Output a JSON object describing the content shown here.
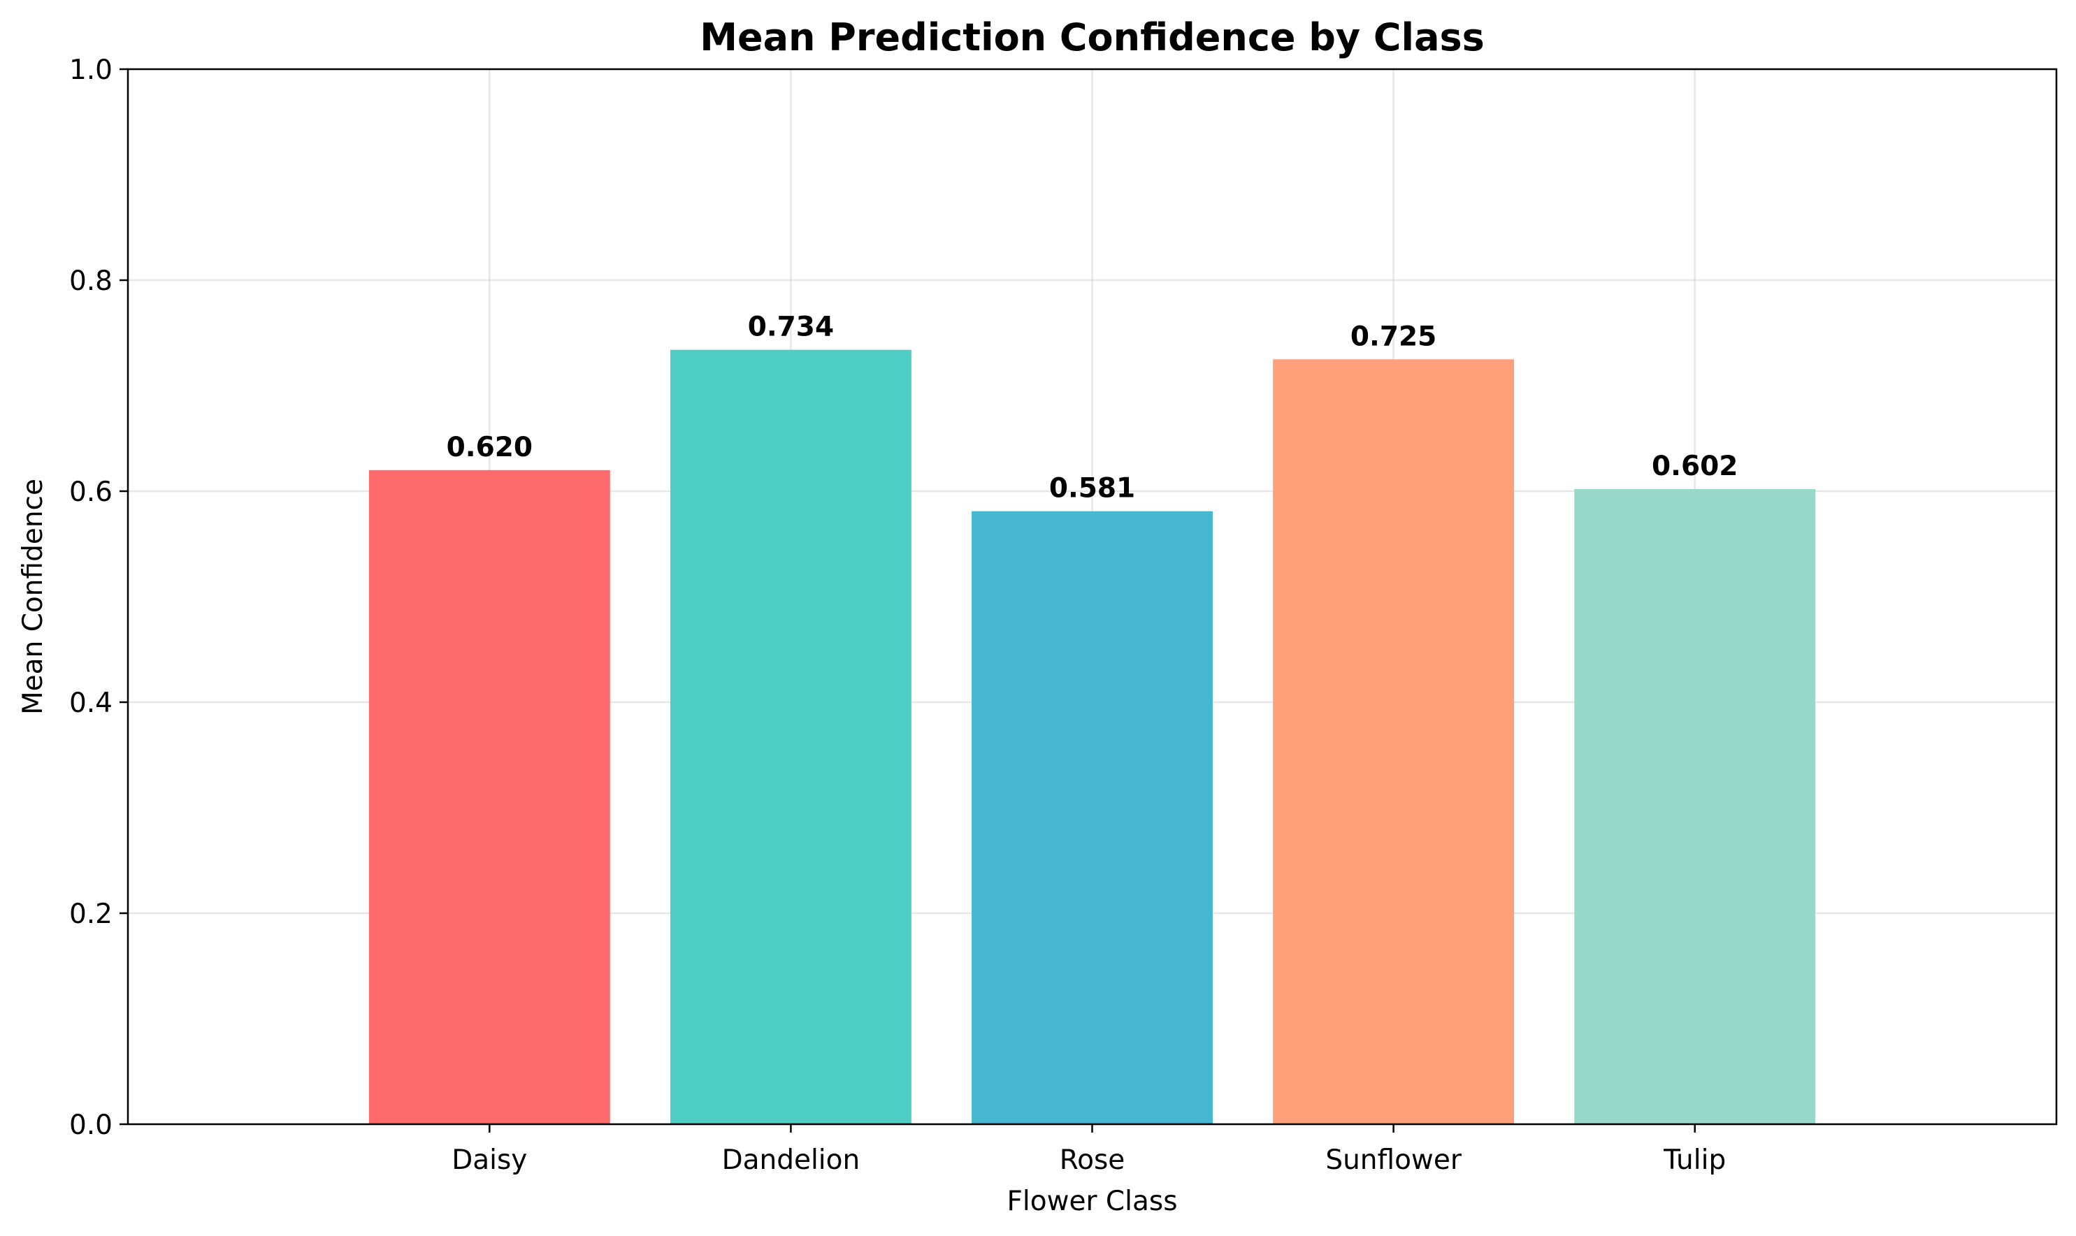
{
  "chart_data": {
    "type": "bar",
    "title": "Mean Prediction Confidence by Class",
    "xlabel": "Flower Class",
    "ylabel": "Mean Confidence",
    "categories": [
      "Daisy",
      "Dandelion",
      "Rose",
      "Sunflower",
      "Tulip"
    ],
    "values": [
      0.62,
      0.734,
      0.581,
      0.725,
      0.602
    ],
    "value_labels": [
      "0.620",
      "0.734",
      "0.581",
      "0.725",
      "0.602"
    ],
    "colors": [
      "#ff6b6b",
      "#4ecdc4",
      "#45b7d1",
      "#ffa07a",
      "#98d8c8"
    ],
    "ylim": [
      0,
      1.0
    ],
    "yticks": [
      0.0,
      0.2,
      0.4,
      0.6,
      0.8,
      1.0
    ],
    "ytick_labels": [
      "0.0",
      "0.2",
      "0.4",
      "0.6",
      "0.8",
      "1.0"
    ],
    "grid": true,
    "legend": "none"
  }
}
